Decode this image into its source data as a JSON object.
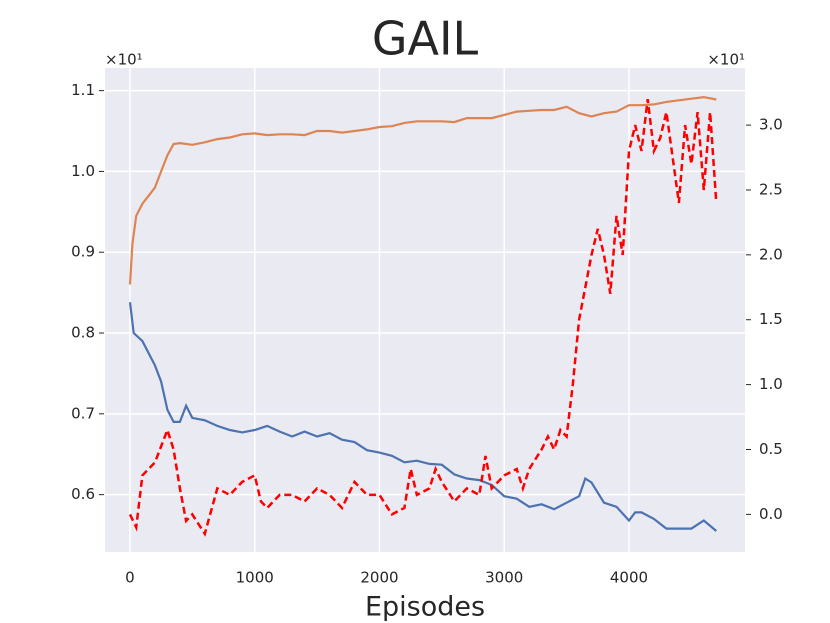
{
  "chart_data": {
    "type": "line",
    "title": "GAIL",
    "xlabel": "Episodes",
    "y_offset_label": "×10¹",
    "y2_offset_label": "×10¹",
    "xlim": [
      -200,
      4930
    ],
    "xticks": [
      0,
      1000,
      2000,
      3000,
      4000
    ],
    "ylim": [
      0.529,
      1.128
    ],
    "yticks": [
      0.6,
      0.7,
      0.8,
      0.9,
      {
        "value": 1,
        "label": "1.0"
      },
      1.1
    ],
    "y2lim": [
      -0.29,
      3.44
    ],
    "y2ticks": [
      {
        "value": 0,
        "label": "0.0"
      },
      0.5,
      {
        "value": 1,
        "label": "1.0"
      },
      1.5,
      {
        "value": 2,
        "label": "2.0"
      },
      2.5,
      {
        "value": 3,
        "label": "3.0"
      }
    ],
    "grid": true,
    "background": "#eaeaf2",
    "series": [
      {
        "color": "#dd8452",
        "dash": false,
        "axis": "y",
        "x": [
          0,
          20,
          50,
          100,
          150,
          200,
          250,
          300,
          350,
          400,
          500,
          600,
          700,
          800,
          900,
          1000,
          1100,
          1200,
          1300,
          1400,
          1500,
          1600,
          1700,
          1800,
          1900,
          2000,
          2100,
          2200,
          2300,
          2400,
          2500,
          2600,
          2700,
          2800,
          2900,
          3000,
          3100,
          3200,
          3300,
          3400,
          3500,
          3600,
          3700,
          3800,
          3900,
          4000,
          4100,
          4200,
          4300,
          4400,
          4500,
          4600,
          4700
        ],
        "values": [
          0.86,
          0.91,
          0.945,
          0.96,
          0.97,
          0.98,
          1.0,
          1.02,
          1.034,
          1.035,
          1.033,
          1.036,
          1.04,
          1.042,
          1.046,
          1.047,
          1.045,
          1.046,
          1.046,
          1.045,
          1.05,
          1.05,
          1.048,
          1.05,
          1.052,
          1.055,
          1.056,
          1.06,
          1.062,
          1.062,
          1.062,
          1.061,
          1.066,
          1.066,
          1.066,
          1.07,
          1.074,
          1.075,
          1.076,
          1.076,
          1.08,
          1.072,
          1.068,
          1.072,
          1.074,
          1.082,
          1.082,
          1.083,
          1.086,
          1.088,
          1.09,
          1.092,
          1.089
        ]
      },
      {
        "color": "#4c72b0",
        "dash": false,
        "axis": "y",
        "x": [
          0,
          30,
          100,
          200,
          250,
          300,
          350,
          400,
          450,
          500,
          600,
          700,
          800,
          900,
          1000,
          1100,
          1200,
          1300,
          1400,
          1500,
          1600,
          1700,
          1800,
          1900,
          2000,
          2100,
          2200,
          2300,
          2400,
          2500,
          2600,
          2700,
          2800,
          2900,
          3000,
          3100,
          3200,
          3300,
          3400,
          3500,
          3600,
          3650,
          3700,
          3800,
          3900,
          4000,
          4050,
          4100,
          4200,
          4300,
          4400,
          4500,
          4600,
          4700
        ],
        "values": [
          0.838,
          0.8,
          0.79,
          0.76,
          0.74,
          0.705,
          0.69,
          0.69,
          0.71,
          0.695,
          0.692,
          0.685,
          0.68,
          0.677,
          0.68,
          0.685,
          0.678,
          0.672,
          0.678,
          0.672,
          0.676,
          0.668,
          0.665,
          0.655,
          0.652,
          0.648,
          0.64,
          0.642,
          0.638,
          0.637,
          0.625,
          0.62,
          0.618,
          0.612,
          0.598,
          0.595,
          0.585,
          0.588,
          0.582,
          0.59,
          0.598,
          0.62,
          0.615,
          0.59,
          0.585,
          0.568,
          0.578,
          0.578,
          0.57,
          0.558,
          0.558,
          0.558,
          0.568,
          0.555
        ]
      },
      {
        "color": "#ff0000",
        "dash": true,
        "axis": "y2",
        "x": [
          0,
          50,
          100,
          200,
          300,
          350,
          400,
          450,
          500,
          600,
          700,
          800,
          900,
          1000,
          1050,
          1100,
          1200,
          1300,
          1400,
          1500,
          1600,
          1700,
          1800,
          1900,
          2000,
          2100,
          2200,
          2250,
          2300,
          2400,
          2450,
          2500,
          2600,
          2700,
          2800,
          2850,
          2900,
          3000,
          3100,
          3150,
          3200,
          3300,
          3350,
          3400,
          3450,
          3500,
          3550,
          3600,
          3700,
          3750,
          3800,
          3850,
          3900,
          3950,
          4000,
          4050,
          4100,
          4150,
          4200,
          4250,
          4300,
          4400,
          4450,
          4500,
          4550,
          4600,
          4650,
          4700
        ],
        "values": [
          0.0,
          -0.1,
          0.3,
          0.4,
          0.65,
          0.5,
          0.2,
          -0.05,
          0.0,
          -0.15,
          0.2,
          0.15,
          0.25,
          0.3,
          0.1,
          0.05,
          0.15,
          0.15,
          0.1,
          0.2,
          0.15,
          0.05,
          0.25,
          0.15,
          0.15,
          0.0,
          0.05,
          0.35,
          0.15,
          0.2,
          0.35,
          0.25,
          0.1,
          0.2,
          0.15,
          0.45,
          0.2,
          0.3,
          0.35,
          0.2,
          0.35,
          0.5,
          0.6,
          0.5,
          0.65,
          0.6,
          1.0,
          1.5,
          2.0,
          2.2,
          2.0,
          1.7,
          2.3,
          2.0,
          2.8,
          3.0,
          2.8,
          3.2,
          2.8,
          2.9,
          3.1,
          2.4,
          3.0,
          2.7,
          3.1,
          2.5,
          3.1,
          2.4
        ]
      }
    ]
  }
}
